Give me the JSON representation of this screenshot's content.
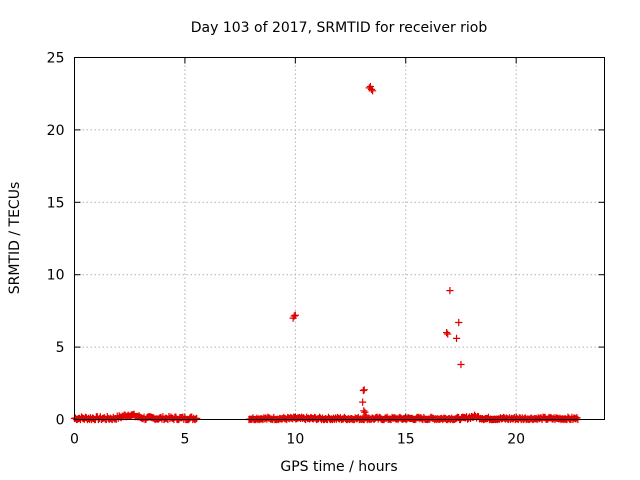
{
  "chart_data": {
    "type": "scatter",
    "title": "Day 103 of 2017, SRMTID for receiver riob",
    "xlabel": "GPS time / hours",
    "ylabel": "SRMTID / TECUs",
    "xlim": [
      0,
      24
    ],
    "ylim": [
      0,
      25
    ],
    "x_ticks": [
      0,
      5,
      10,
      15,
      20
    ],
    "x_tick_labels": [
      "0",
      "5",
      "10",
      "15",
      "20"
    ],
    "y_ticks": [
      0,
      5,
      10,
      15,
      20,
      25
    ],
    "y_tick_labels": [
      "0",
      "5",
      "10",
      "15",
      "20",
      "25"
    ],
    "grid": true,
    "marker": "plus",
    "colors": {
      "series": "#e00000",
      "grid": "#b0b0b0",
      "frame": "#000000"
    },
    "series": [
      {
        "segments": [
          {
            "x_start": 0.0,
            "x_end": 5.55,
            "y_base": 0.08,
            "y_jitter": 0.12
          },
          {
            "x_start": 7.9,
            "x_end": 22.8,
            "y_base": 0.06,
            "y_jitter": 0.1
          }
        ],
        "bumps": [
          {
            "x_start": 1.8,
            "x_end": 3.2,
            "y_extra": 0.25
          },
          {
            "x_start": 17.6,
            "x_end": 18.6,
            "y_extra": 0.15
          }
        ],
        "points": [
          {
            "x": 9.9,
            "y": 7.0
          },
          {
            "x": 9.95,
            "y": 7.15
          },
          {
            "x": 10.0,
            "y": 7.2
          },
          {
            "x": 13.05,
            "y": 1.2
          },
          {
            "x": 13.08,
            "y": 2.0
          },
          {
            "x": 13.12,
            "y": 2.05
          },
          {
            "x": 13.1,
            "y": 0.6
          },
          {
            "x": 13.15,
            "y": 0.5
          },
          {
            "x": 13.2,
            "y": 0.3
          },
          {
            "x": 13.35,
            "y": 22.9
          },
          {
            "x": 13.4,
            "y": 23.0
          },
          {
            "x": 13.45,
            "y": 22.8
          },
          {
            "x": 13.5,
            "y": 22.7
          },
          {
            "x": 16.85,
            "y": 6.0
          },
          {
            "x": 16.9,
            "y": 5.9
          },
          {
            "x": 17.0,
            "y": 8.9
          },
          {
            "x": 17.3,
            "y": 5.6
          },
          {
            "x": 17.4,
            "y": 6.7
          },
          {
            "x": 17.5,
            "y": 3.8
          }
        ]
      }
    ]
  }
}
